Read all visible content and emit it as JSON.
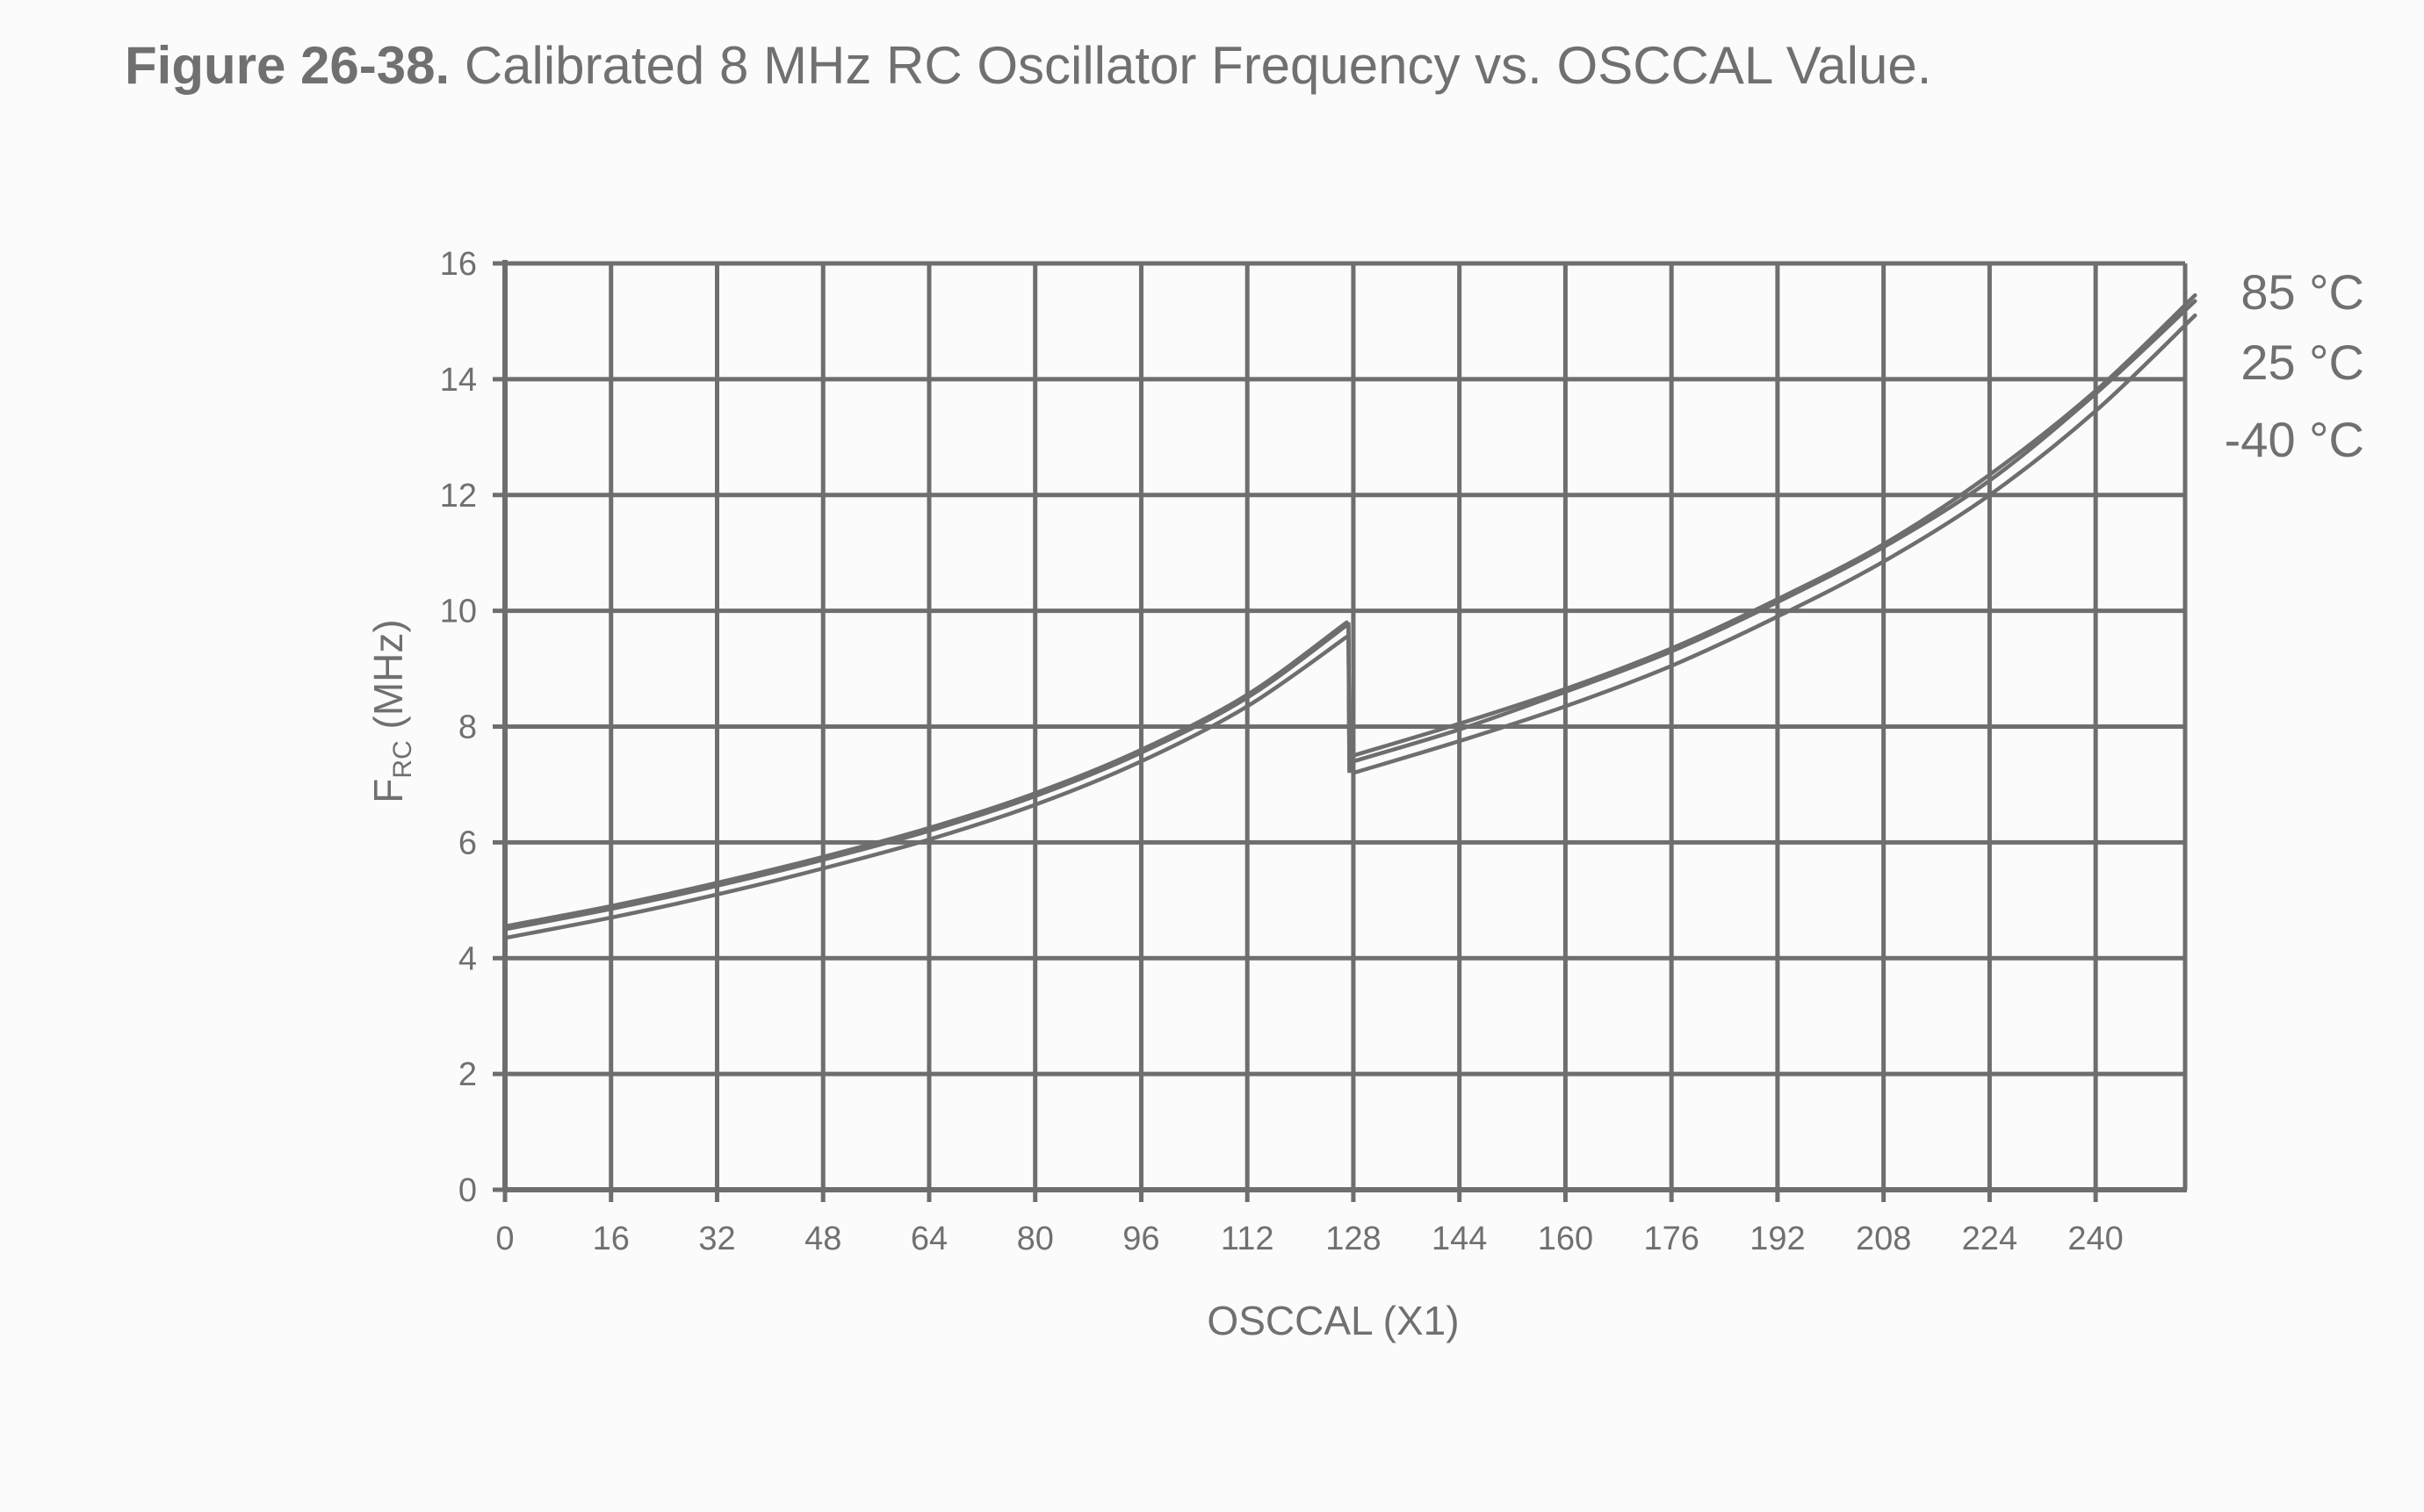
{
  "figure": {
    "number": "Figure 26-38.",
    "title": "Calibrated 8 MHz RC Oscillator Frequency vs. OSCCAL Value."
  },
  "chart_data": {
    "type": "line",
    "title": "Figure 26-38. Calibrated 8 MHz RC Oscillator Frequency vs. OSCCAL Value.",
    "xlabel": "OSCCAL (X1)",
    "ylabel": {
      "main": "F",
      "subscript": "RC",
      "unit": " (MHz)"
    },
    "xlim": [
      0,
      255
    ],
    "ylim": [
      0,
      16
    ],
    "xticks": [
      0,
      16,
      32,
      48,
      64,
      80,
      96,
      112,
      128,
      144,
      160,
      176,
      192,
      208,
      224,
      240
    ],
    "yticks": [
      0,
      2,
      4,
      6,
      8,
      10,
      12,
      14,
      16
    ],
    "grid": true,
    "legend": "right-top, labels at line ends",
    "line_color": "#6e6e6e",
    "series": [
      {
        "name": "85 °C",
        "segments": [
          {
            "x": [
              0,
              16,
              32,
              48,
              64,
              80,
              96,
              112,
              127
            ],
            "y": [
              4.55,
              4.9,
              5.3,
              5.75,
              6.25,
              6.85,
              7.6,
              8.55,
              9.8
            ]
          },
          {
            "x": [
              128,
              144,
              160,
              176,
              192,
              208,
              224,
              240,
              255
            ],
            "y": [
              7.5,
              8.05,
              8.65,
              9.35,
              10.2,
              11.15,
              12.35,
              13.8,
              15.45
            ]
          }
        ]
      },
      {
        "name": "25 °C",
        "segments": [
          {
            "x": [
              0,
              16,
              32,
              48,
              64,
              80,
              96,
              112,
              127
            ],
            "y": [
              4.5,
              4.85,
              5.25,
              5.7,
              6.2,
              6.8,
              7.55,
              8.5,
              9.75
            ]
          },
          {
            "x": [
              128,
              144,
              160,
              176,
              192,
              208,
              224,
              240,
              255
            ],
            "y": [
              7.4,
              7.95,
              8.6,
              9.3,
              10.15,
              11.1,
              12.25,
              13.75,
              15.35
            ]
          }
        ]
      },
      {
        "name": "-40 °C",
        "segments": [
          {
            "x": [
              0,
              16,
              32,
              48,
              64,
              80,
              96,
              112,
              127
            ],
            "y": [
              4.35,
              4.7,
              5.1,
              5.55,
              6.05,
              6.65,
              7.4,
              8.35,
              9.55
            ]
          },
          {
            "x": [
              128,
              144,
              160,
              176,
              192,
              208,
              224,
              240,
              255
            ],
            "y": [
              7.2,
              7.75,
              8.35,
              9.05,
              9.9,
              10.85,
              12.0,
              13.45,
              15.1
            ]
          }
        ]
      }
    ]
  }
}
